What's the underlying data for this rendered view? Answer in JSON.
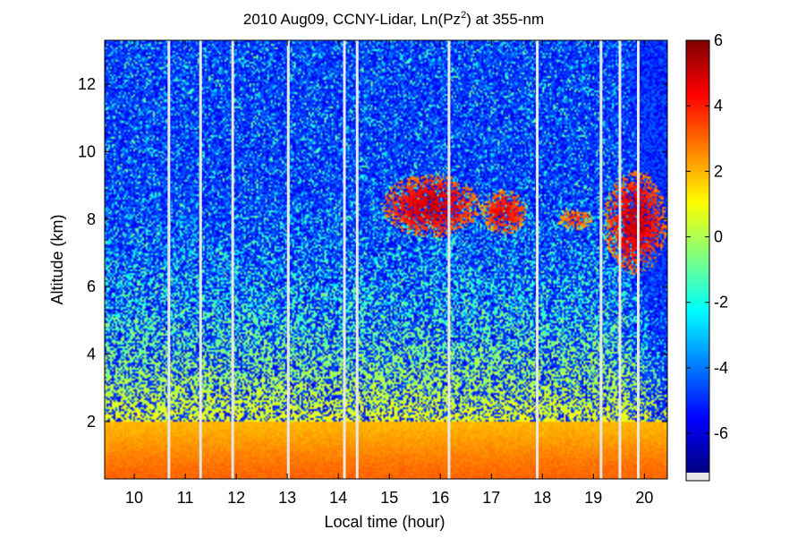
{
  "chart_data": {
    "type": "heatmap",
    "title": {
      "prefix": "2010 Aug09, CCNY-Lidar, Ln(Pz",
      "superscript": "2",
      "suffix": ") at 355-nm"
    },
    "xlabel": "Local time (hour)",
    "ylabel": "Altitude (km)",
    "xlim": [
      9.42,
      20.45
    ],
    "ylim": [
      0.3,
      13.3
    ],
    "x_ticks": [
      10,
      11,
      12,
      13,
      14,
      15,
      16,
      17,
      18,
      19,
      20
    ],
    "y_ticks": [
      2,
      4,
      6,
      8,
      10,
      12
    ],
    "colorbar": {
      "range": [
        -7.2,
        6
      ],
      "ticks": [
        6,
        4,
        2,
        0,
        -2,
        -4,
        -6
      ],
      "tick_labels": [
        "6",
        "4",
        "2",
        "0",
        "-2",
        "-4",
        "-6"
      ],
      "colormap": "jet",
      "nodata_color": "#e6e6e6"
    },
    "data_gaps_hours": [
      10.68,
      11.3,
      11.93,
      13.02,
      14.12,
      14.37,
      16.17,
      17.9,
      19.15,
      19.52,
      19.88
    ],
    "cloud_layers": [
      {
        "x_range": [
          14.85,
          16.8
        ],
        "alt_range": [
          7.0,
          9.8
        ],
        "peak_value": 5
      },
      {
        "x_range": [
          16.8,
          17.7
        ],
        "alt_range": [
          7.2,
          9.2
        ],
        "peak_value": 4.5
      },
      {
        "x_range": [
          18.3,
          19.0
        ],
        "alt_range": [
          7.5,
          8.5
        ],
        "peak_value": 3.5
      },
      {
        "x_range": [
          19.2,
          20.45
        ],
        "alt_range": [
          5.6,
          10.2
        ],
        "peak_value": 5
      }
    ],
    "background": {
      "boundary_layer_top_km": 2.0,
      "boundary_layer_value": 2.5,
      "mid_level_value": 0.3,
      "upper_level_value": -6
    }
  }
}
